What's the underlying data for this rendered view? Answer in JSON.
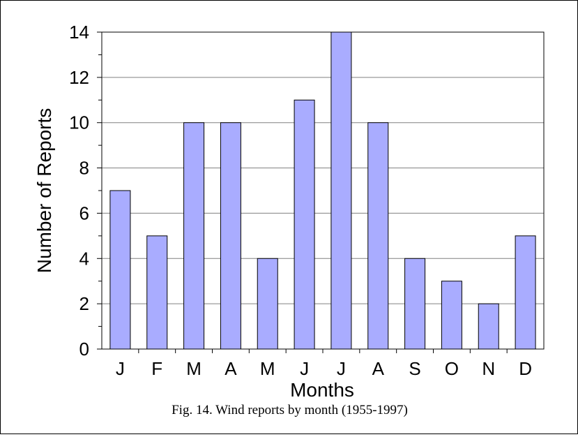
{
  "chart_data": {
    "type": "bar",
    "categories": [
      "J",
      "F",
      "M",
      "A",
      "M",
      "J",
      "J",
      "A",
      "S",
      "O",
      "N",
      "D"
    ],
    "values": [
      7,
      5,
      10,
      10,
      4,
      11,
      14,
      10,
      4,
      3,
      2,
      5
    ],
    "xlabel": "Months",
    "ylabel": "Number of Reports",
    "ylim": [
      0,
      14
    ],
    "yticks": [
      0,
      2,
      4,
      6,
      8,
      10,
      12,
      14
    ],
    "grid": true,
    "bar_color": "#a9acff"
  },
  "caption": "Fig. 14. Wind reports by month (1955-1997)"
}
